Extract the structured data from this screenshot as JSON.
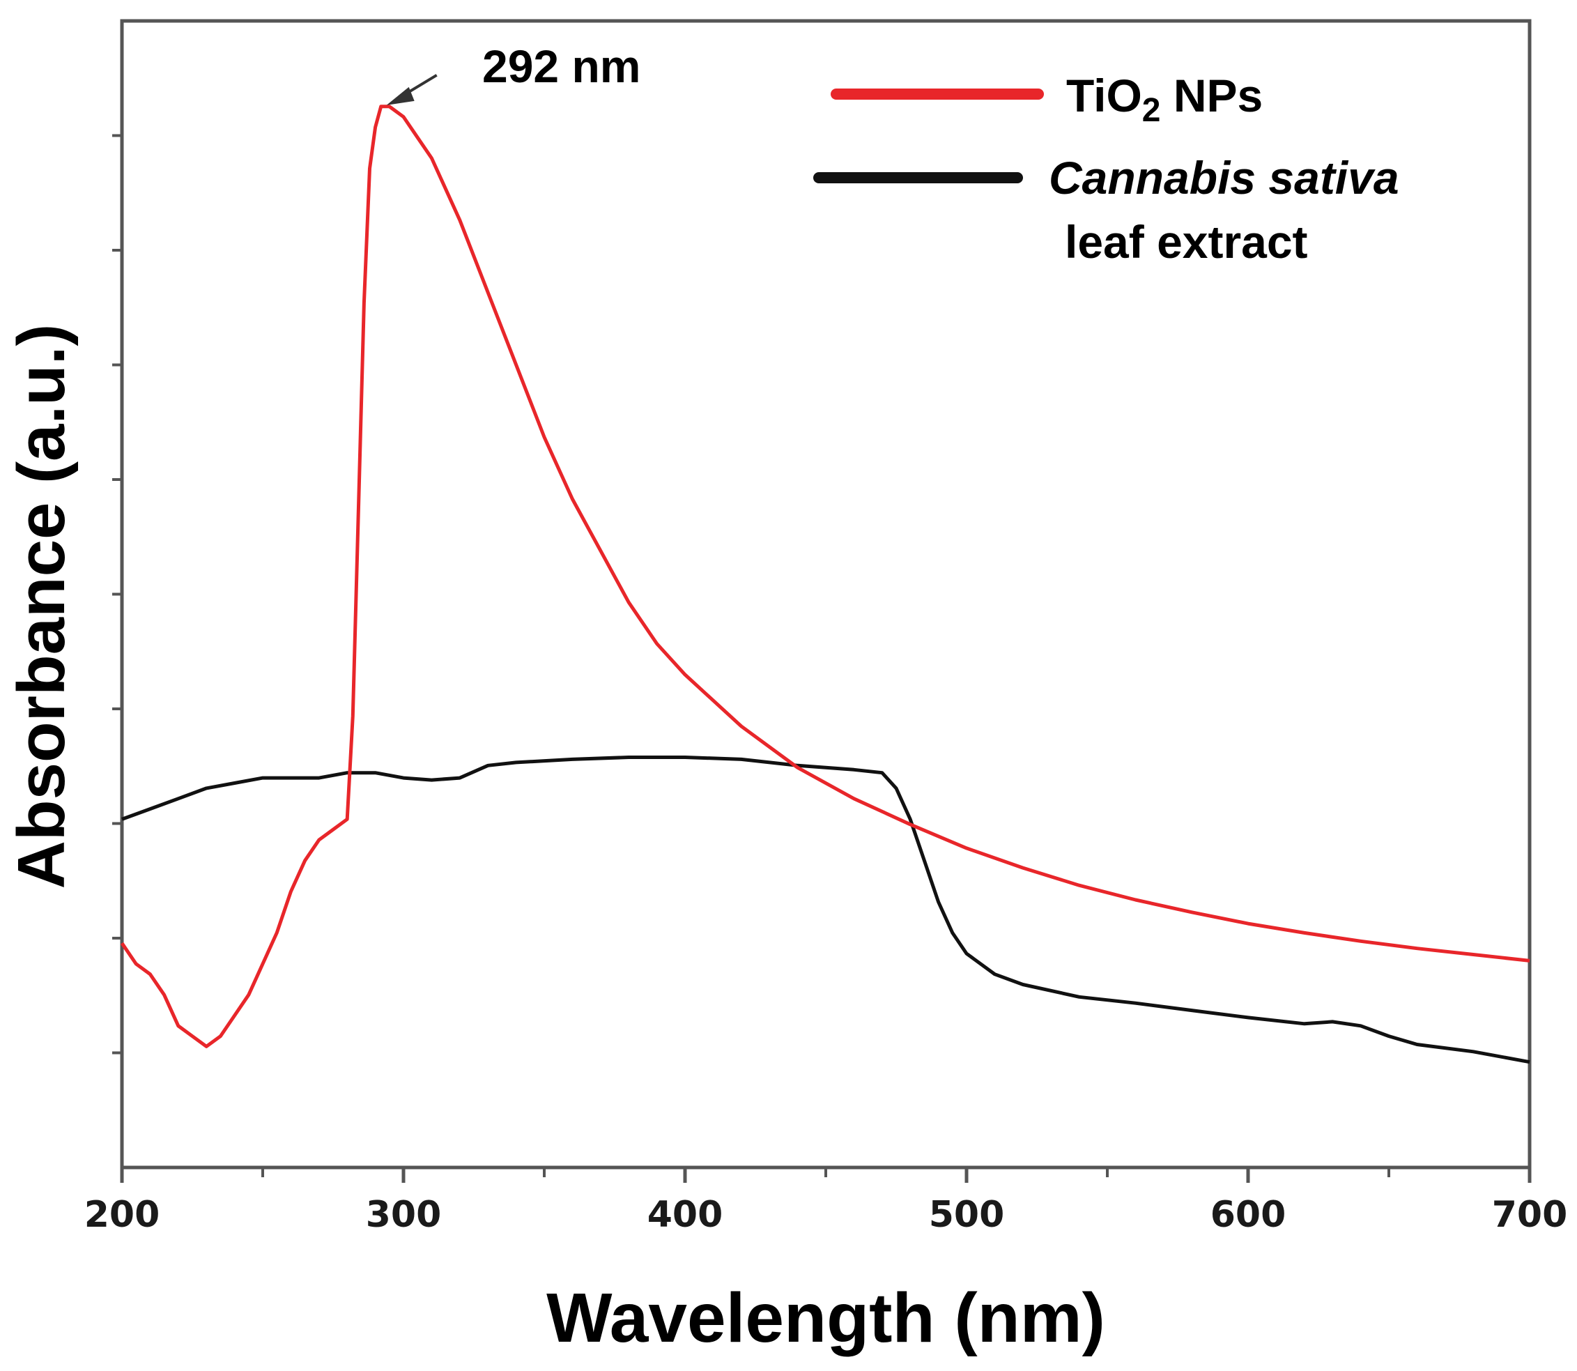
{
  "chart_data": {
    "type": "line",
    "xlabel": "Wavelength (nm)",
    "ylabel": "Absorbance (a.u.)",
    "xlim": [
      200,
      700
    ],
    "ylim": [
      0,
      1
    ],
    "x_ticks": [
      "200",
      "300",
      "400",
      "500",
      "600",
      "700"
    ],
    "y_tick_labels_shown": false,
    "grid": false,
    "legend_position": "top-right",
    "annotation": {
      "text": "292 nm",
      "x": 292
    },
    "series": [
      {
        "name": "TiO₂ NPs",
        "legend_parts": {
          "main": "TiO",
          "sub": "2",
          "rest": " NPs"
        },
        "color": "#e8262a",
        "x": [
          200,
          205,
          210,
          215,
          220,
          225,
          230,
          235,
          240,
          245,
          250,
          255,
          260,
          265,
          270,
          275,
          280,
          282,
          284,
          286,
          288,
          290,
          292,
          295,
          300,
          305,
          310,
          320,
          330,
          340,
          350,
          360,
          370,
          380,
          390,
          400,
          420,
          440,
          460,
          480,
          500,
          520,
          540,
          560,
          580,
          600,
          620,
          640,
          660,
          680,
          700
        ],
        "y": [
          0.18,
          0.16,
          0.15,
          0.13,
          0.1,
          0.09,
          0.08,
          0.09,
          0.11,
          0.13,
          0.16,
          0.19,
          0.23,
          0.26,
          0.28,
          0.29,
          0.3,
          0.4,
          0.6,
          0.8,
          0.93,
          0.97,
          0.99,
          0.99,
          0.98,
          0.96,
          0.94,
          0.88,
          0.81,
          0.74,
          0.67,
          0.61,
          0.56,
          0.51,
          0.47,
          0.44,
          0.39,
          0.35,
          0.32,
          0.295,
          0.272,
          0.253,
          0.236,
          0.222,
          0.21,
          0.199,
          0.19,
          0.182,
          0.175,
          0.169,
          0.163
        ]
      },
      {
        "name": "Cannabis sativa leaf extract",
        "legend_parts": {
          "italic": "Cannabis sativa",
          "line2": "leaf extract"
        },
        "color": "#111111",
        "x": [
          200,
          210,
          220,
          230,
          240,
          250,
          260,
          270,
          280,
          290,
          300,
          310,
          320,
          330,
          340,
          360,
          380,
          400,
          420,
          440,
          460,
          470,
          475,
          480,
          485,
          490,
          495,
          500,
          510,
          520,
          540,
          560,
          580,
          600,
          620,
          630,
          640,
          650,
          660,
          680,
          700
        ],
        "y": [
          0.3,
          0.31,
          0.32,
          0.33,
          0.335,
          0.34,
          0.34,
          0.34,
          0.345,
          0.345,
          0.34,
          0.338,
          0.34,
          0.352,
          0.355,
          0.358,
          0.36,
          0.36,
          0.358,
          0.352,
          0.348,
          0.345,
          0.33,
          0.3,
          0.26,
          0.22,
          0.19,
          0.17,
          0.15,
          0.14,
          0.128,
          0.122,
          0.115,
          0.108,
          0.102,
          0.104,
          0.1,
          0.09,
          0.082,
          0.075,
          0.065
        ]
      }
    ]
  }
}
